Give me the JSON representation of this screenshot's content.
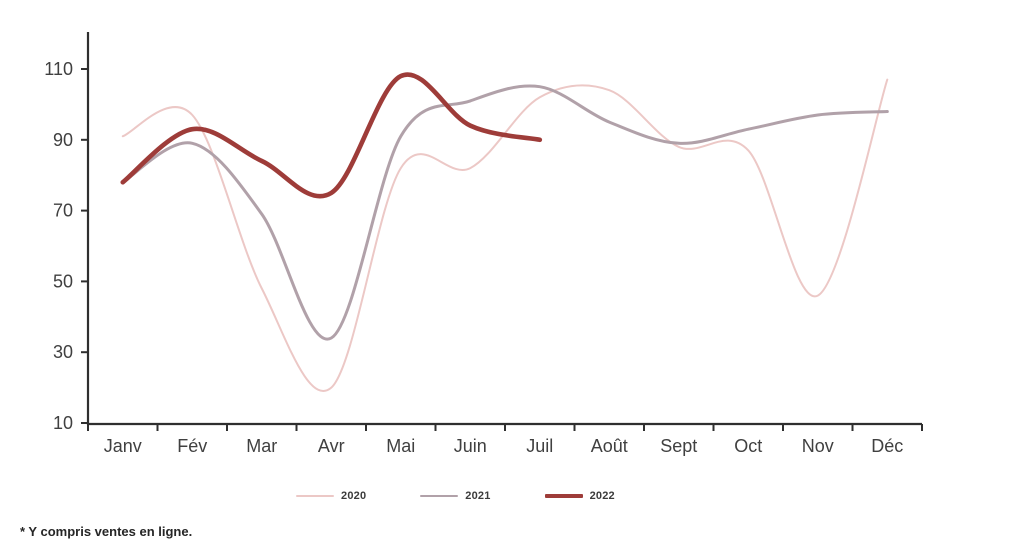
{
  "footnote": "* Y compris ventes en ligne.",
  "axis_color": "#2f2f2f",
  "label_color": "#404040",
  "chart_data": {
    "type": "line",
    "title": "",
    "xlabel": "",
    "ylabel": "",
    "categories": [
      "Janv",
      "Fév",
      "Mar",
      "Avr",
      "Mai",
      "Juin",
      "Juil",
      "Août",
      "Sept",
      "Oct",
      "Nov",
      "Déc"
    ],
    "yticks": [
      110,
      90,
      70,
      50,
      30,
      10
    ],
    "ylim": [
      10,
      121
    ],
    "grid": "off",
    "smooth": true,
    "legend_position": "bottom",
    "series": [
      {
        "name": "2020",
        "color": "#ecc8c6",
        "width": 2,
        "values": [
          91,
          97,
          48,
          20,
          82,
          82,
          102,
          104,
          88,
          87,
          46,
          107
        ]
      },
      {
        "name": "2021",
        "color": "#b1a1a9",
        "width": 3,
        "values": [
          78,
          89,
          69,
          34,
          91,
          101,
          105,
          95,
          89,
          93,
          97,
          98
        ]
      },
      {
        "name": "2022",
        "color": "#9e3c39",
        "width": 4.6,
        "values": [
          78,
          93,
          84,
          75,
          108,
          94,
          90,
          null,
          null,
          null,
          null,
          null
        ]
      }
    ]
  }
}
